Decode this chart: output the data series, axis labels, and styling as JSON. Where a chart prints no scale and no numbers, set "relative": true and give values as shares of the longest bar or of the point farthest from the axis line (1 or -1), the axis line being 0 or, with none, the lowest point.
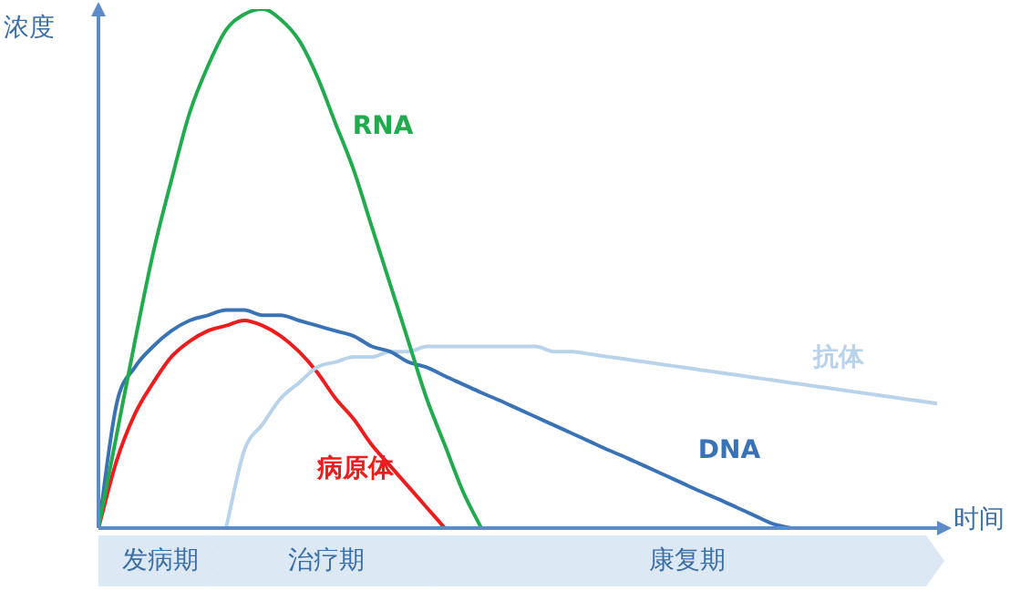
{
  "chart_data": {
    "type": "line",
    "relative": true,
    "xlabel": "时间",
    "ylabel": "浓度",
    "categories": [
      null,
      null,
      null,
      null,
      null,
      null,
      null,
      null,
      null,
      null,
      null,
      null,
      null,
      null,
      null,
      null,
      null,
      null,
      null,
      null,
      null,
      null,
      null,
      null,
      null,
      null,
      null,
      null,
      null,
      null,
      null,
      null,
      null,
      null,
      null,
      null,
      null,
      null,
      null,
      null,
      null,
      null,
      null,
      null,
      null,
      null,
      null
    ],
    "series": [
      {
        "name": "RNA",
        "color": "#22aa4f",
        "values": [
          0,
          0.18,
          0.36,
          0.53,
          0.67,
          0.8,
          0.89,
          0.96,
          0.99,
          1,
          0.98,
          0.94,
          0.87,
          0.78,
          0.69,
          0.58,
          0.47,
          0.36,
          0.25,
          0.16,
          0.07,
          0,
          null,
          null,
          null,
          null,
          null,
          null,
          null,
          null,
          null,
          null,
          null,
          null,
          null,
          null,
          null,
          null,
          null,
          null,
          null,
          null,
          null,
          null,
          null,
          null,
          null
        ]
      },
      {
        "name": "DNA",
        "color": "#3a73b5",
        "values": [
          0,
          0.24,
          0.31,
          0.35,
          0.38,
          0.4,
          0.41,
          0.42,
          0.42,
          0.41,
          0.41,
          0.4,
          0.39,
          0.38,
          0.37,
          0.35,
          0.34,
          0.32,
          0.31,
          0.293,
          0.277,
          0.261,
          0.246,
          0.23,
          0.214,
          0.198,
          0.182,
          0.166,
          0.15,
          0.135,
          0.119,
          0.103,
          0.087,
          0.071,
          0.056,
          0.04,
          0.024,
          0.008,
          0,
          null,
          null,
          null,
          null,
          null,
          null,
          null,
          null
        ]
      },
      {
        "name": "抗体",
        "color": "#b9d3ea",
        "values": [
          null,
          null,
          null,
          null,
          null,
          null,
          null,
          0,
          0.15,
          0.2,
          0.25,
          0.28,
          0.31,
          0.32,
          0.33,
          0.33,
          0.34,
          0.34,
          0.35,
          0.35,
          0.35,
          0.35,
          0.35,
          0.35,
          0.35,
          0.34,
          0.34,
          0.335,
          0.33,
          0.325,
          0.32,
          0.315,
          0.31,
          0.305,
          0.3,
          0.295,
          0.29,
          0.285,
          0.28,
          0.275,
          0.27,
          0.265,
          0.26,
          0.255,
          0.25,
          0.245,
          0.24
        ]
      },
      {
        "name": "病原体",
        "color": "#ee1c1c",
        "values": [
          0,
          0.13,
          0.22,
          0.28,
          0.33,
          0.36,
          0.38,
          0.39,
          0.4,
          0.39,
          0.37,
          0.34,
          0.3,
          0.25,
          0.21,
          0.16,
          0.12,
          0.08,
          0.04,
          0,
          null,
          null,
          null,
          null,
          null,
          null,
          null,
          null,
          null,
          null,
          null,
          null,
          null,
          null,
          null,
          null,
          null,
          null,
          null,
          null,
          null,
          null,
          null,
          null,
          null,
          null,
          null
        ]
      }
    ],
    "annotations": [
      "发病期",
      "治疗期",
      "康复期"
    ],
    "marker": "none",
    "legend": false
  }
}
